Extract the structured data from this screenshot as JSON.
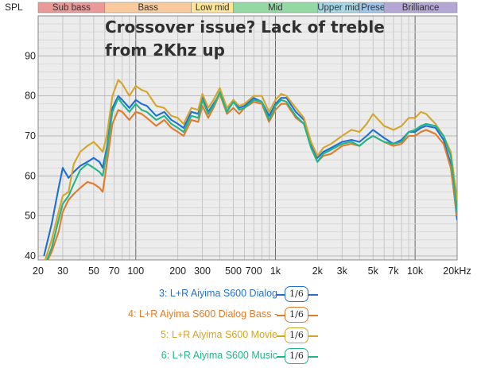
{
  "chart_data": {
    "type": "line",
    "title": "Crossover issue? Lack of treble from 2Khz up",
    "ylabel": "SPL",
    "xunit_label": "20kHz",
    "xscale": "log",
    "xlim": [
      20,
      20000
    ],
    "ylim": [
      39,
      100
    ],
    "grid": true,
    "legend_placement": "bottom-center",
    "x_ticks": [
      {
        "value": 20,
        "label": "20"
      },
      {
        "value": 30,
        "label": "30"
      },
      {
        "value": 50,
        "label": "50"
      },
      {
        "value": 70,
        "label": "70"
      },
      {
        "value": 100,
        "label": "100"
      },
      {
        "value": 200,
        "label": "200"
      },
      {
        "value": 300,
        "label": "300"
      },
      {
        "value": 500,
        "label": "500"
      },
      {
        "value": 700,
        "label": "700"
      },
      {
        "value": 1000,
        "label": "1k"
      },
      {
        "value": 2000,
        "label": "2k"
      },
      {
        "value": 3000,
        "label": "3k"
      },
      {
        "value": 5000,
        "label": "5k"
      },
      {
        "value": 7000,
        "label": "7k"
      },
      {
        "value": 10000,
        "label": "10k"
      }
    ],
    "y_ticks": [
      {
        "value": 40,
        "label": "40"
      },
      {
        "value": 50,
        "label": "50"
      },
      {
        "value": 60,
        "label": "60"
      },
      {
        "value": 70,
        "label": "70"
      },
      {
        "value": 80,
        "label": "80"
      },
      {
        "value": 90,
        "label": "90"
      }
    ],
    "bands": [
      {
        "label": "Sub bass",
        "from": 20,
        "to": 60,
        "color": "#ea9999"
      },
      {
        "label": "Bass",
        "from": 60,
        "to": 250,
        "color": "#f9cb9c"
      },
      {
        "label": "Low mid",
        "from": 250,
        "to": 500,
        "color": "#ffe599"
      },
      {
        "label": "Mid",
        "from": 500,
        "to": 2000,
        "color": "#93d9a4"
      },
      {
        "label": "Upper mid",
        "from": 2000,
        "to": 4000,
        "color": "#a4d8e6"
      },
      {
        "label": "Presence",
        "from": 4000,
        "to": 6000,
        "color": "#9fc5e8"
      },
      {
        "label": "Brilliance",
        "from": 6000,
        "to": 20000,
        "color": "#b4a7d6"
      }
    ],
    "x": [
      22,
      25,
      28,
      30,
      33,
      36,
      40,
      45,
      50,
      55,
      58,
      62,
      68,
      75,
      80,
      90,
      100,
      110,
      120,
      140,
      160,
      180,
      200,
      220,
      250,
      280,
      300,
      330,
      360,
      400,
      450,
      500,
      550,
      600,
      700,
      800,
      900,
      1000,
      1100,
      1200,
      1400,
      1600,
      1800,
      2000,
      2200,
      2500,
      3000,
      3500,
      4000,
      4500,
      5000,
      6000,
      7000,
      8000,
      9000,
      10000,
      11000,
      12000,
      14000,
      16000,
      18000,
      20000
    ],
    "series": [
      {
        "name": "3: L+R Aiyima S600 Dialog",
        "color": "#1f6fd1",
        "values": [
          40,
          48,
          57,
          62,
          59.5,
          61,
          62.5,
          63.5,
          64.5,
          63.5,
          62,
          67,
          77,
          80,
          79,
          77,
          79,
          78,
          77.5,
          75,
          76,
          74,
          73,
          72,
          76,
          75.5,
          80,
          76,
          78,
          80.5,
          76,
          79,
          77,
          77.5,
          79.5,
          78.5,
          75,
          78,
          79.5,
          79.5,
          76,
          74,
          68,
          64.5,
          66,
          67,
          68.5,
          69,
          68.5,
          70,
          71.5,
          69.5,
          68,
          69,
          71,
          71,
          72,
          72.5,
          72,
          69,
          63,
          49
        ]
      },
      {
        "name": "4: L+R Aiyima S600 Dialog Bass -",
        "color": "#e07b2a",
        "values": [
          37,
          41,
          46,
          51,
          54,
          55.5,
          57,
          58.5,
          58,
          57,
          56,
          63,
          73,
          76.5,
          76,
          74,
          76,
          75.5,
          74.5,
          72.5,
          74,
          72,
          71,
          70,
          74,
          73.5,
          77.5,
          74.5,
          77,
          80.5,
          75.5,
          77,
          75.5,
          77,
          78.5,
          78,
          73.5,
          76.5,
          78,
          78,
          74.5,
          73,
          67,
          63.5,
          65,
          65.5,
          67.5,
          68,
          67.5,
          69,
          70,
          68.5,
          67.5,
          68,
          70,
          70,
          71,
          71.5,
          70.5,
          68,
          62,
          50
        ]
      },
      {
        "name": "5: L+R Aiyima S600 Movie",
        "color": "#d4a52a",
        "values": [
          38,
          44,
          51,
          55,
          56,
          63,
          66,
          67.5,
          68.5,
          67,
          66,
          70,
          80,
          84,
          83,
          80,
          82.5,
          81.5,
          81,
          77.5,
          77,
          75,
          74.5,
          73,
          77,
          76.5,
          80.5,
          77,
          79,
          82,
          77,
          79,
          77.5,
          78,
          80,
          80,
          76,
          79,
          80.5,
          80,
          77,
          74.5,
          68.5,
          65,
          67,
          68,
          70,
          71.5,
          71,
          73,
          75.5,
          72.5,
          71.5,
          72.5,
          74.5,
          74.5,
          76,
          75.5,
          73,
          70,
          66,
          54
        ]
      },
      {
        "name": "6: L+R Aiyima S600 Music",
        "color": "#22b58a",
        "values": [
          37,
          42,
          49,
          53,
          55,
          58,
          61.5,
          63,
          62,
          61,
          60,
          66,
          76,
          79.5,
          78,
          76,
          78,
          76.5,
          76,
          74,
          75,
          73,
          72,
          71,
          75,
          74.5,
          79,
          75.5,
          77.5,
          81,
          76,
          78.5,
          76.5,
          77,
          79,
          78.5,
          74,
          77.5,
          79,
          78.5,
          75,
          73,
          67,
          63.5,
          65.5,
          66.5,
          68,
          68.5,
          67.5,
          69,
          70,
          68.5,
          68,
          68.5,
          71,
          71.5,
          72.5,
          73,
          72.5,
          70,
          65,
          51
        ]
      }
    ]
  },
  "legend": {
    "box_label": "1/6",
    "items": [
      {
        "label": "3: L+R Aiyima S600 Dialog",
        "color": "#1f6fd1"
      },
      {
        "label": "4: L+R Aiyima S600 Dialog Bass -",
        "color": "#e07b2a"
      },
      {
        "label": "5: L+R Aiyima S600 Movie",
        "color": "#d4a52a"
      },
      {
        "label": "6: L+R Aiyima S600 Music",
        "color": "#22b58a"
      }
    ]
  }
}
